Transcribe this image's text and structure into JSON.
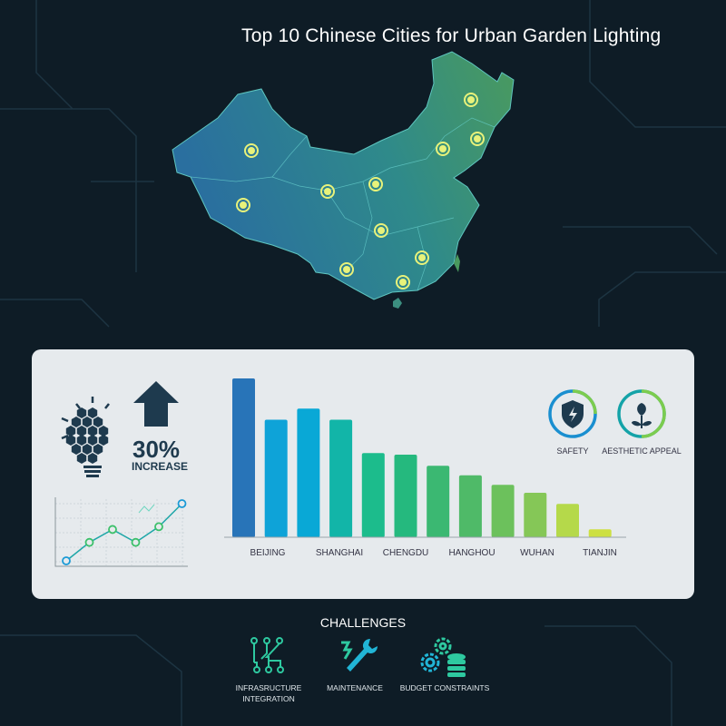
{
  "title": "Top 10 Chinese Cities for Urban Garden Lighting",
  "colors": {
    "background": "#0e1c26",
    "map_west": "#2a6f9f",
    "map_east": "#4a9a5e",
    "marker": "#e8f27a"
  },
  "stats": {
    "percent": "30%",
    "label": "INCREASE",
    "icons": [
      "lightbulb-icon",
      "arrow-up-icon"
    ]
  },
  "chart_data": [
    {
      "type": "bar",
      "title": "",
      "categories": [
        "BEIJING",
        "",
        "SHANGHAI",
        "",
        "CHENGDU",
        "",
        "HANGHOU",
        "",
        "WUHAN",
        "",
        "TIANJIN",
        ""
      ],
      "values": [
        100,
        74,
        81,
        74,
        53,
        52,
        45,
        39,
        33,
        28,
        21,
        5
      ],
      "colors": [
        "#2874b8",
        "#0ea3d8",
        "#09a8d6",
        "#12b5a8",
        "#1cbc8c",
        "#25b97e",
        "#3bb872",
        "#4fba68",
        "#6cc15c",
        "#85c757",
        "#b5d94a",
        "#cde042"
      ],
      "xlabel": "",
      "ylabel": "",
      "grid": false
    },
    {
      "type": "line",
      "values": [
        1,
        3,
        4.4,
        3,
        4.7,
        7.2
      ],
      "grid": true
    }
  ],
  "features": [
    {
      "label": "SAFETY",
      "icon": "shield-icon"
    },
    {
      "label": "AESTHETIC APPEAL",
      "icon": "flower-icon"
    }
  ],
  "challenges": {
    "title": "CHALLENGES",
    "items": [
      {
        "label": "INFRASRUCTURE INTEGRATION",
        "icon": "circuit-icon"
      },
      {
        "label": "MAINTENANCE",
        "icon": "wrench-icon"
      },
      {
        "label": "BUDGET CONSTRAINTS",
        "icon": "gears-coins-icon"
      }
    ]
  }
}
